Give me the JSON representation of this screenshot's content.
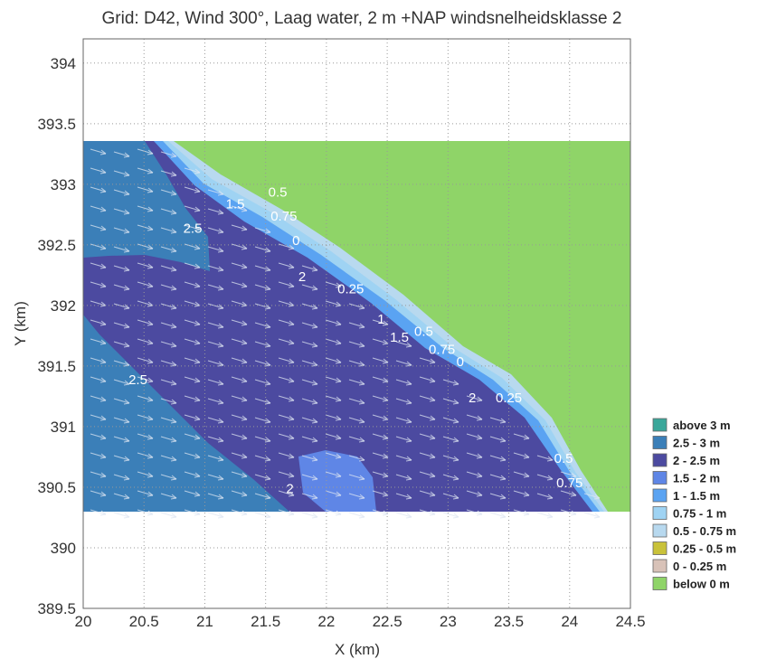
{
  "chart_data": {
    "type": "heatmap",
    "title": "Grid: D42, Wind 300°, Laag water, 2 m +NAP windsnelheidsklasse 2",
    "xlabel": "X (km)",
    "ylabel": "Y (km)",
    "xlim": [
      20,
      24.5
    ],
    "ylim": [
      389.5,
      394.2
    ],
    "xticks": [
      "20",
      "20.5",
      "21",
      "21.5",
      "22",
      "22.5",
      "23",
      "23.5",
      "24",
      "24.5"
    ],
    "yticks": [
      "389.5",
      "390",
      "390.5",
      "391",
      "391.5",
      "392",
      "392.5",
      "393",
      "393.5",
      "394"
    ],
    "grid": true,
    "legend_position": "right",
    "legend": [
      {
        "label": "above 3 m",
        "color": "#3aa79a"
      },
      {
        "label": "2.5 - 3 m",
        "color": "#3b7fb8"
      },
      {
        "label": "2 - 2.5 m",
        "color": "#4c4aa0"
      },
      {
        "label": "1.5 - 2 m",
        "color": "#5f86e6"
      },
      {
        "label": "1 - 1.5 m",
        "color": "#5aa3f2"
      },
      {
        "label": "0.75 - 1 m",
        "color": "#9fd3f3"
      },
      {
        "label": "0.5 - 0.75 m",
        "color": "#b8d9ef"
      },
      {
        "label": "0.25 - 0.5 m",
        "color": "#c9c23a"
      },
      {
        "label": "0 - 0.25 m",
        "color": "#d8c2b8"
      },
      {
        "label": "below 0 m",
        "color": "#8fd468"
      }
    ],
    "contour_labels": [
      {
        "text": "2.5",
        "x": 20.9,
        "y": 392.6
      },
      {
        "text": "2.5",
        "x": 20.45,
        "y": 391.35
      },
      {
        "text": "1.5",
        "x": 21.25,
        "y": 392.8
      },
      {
        "text": "0.5",
        "x": 21.6,
        "y": 392.9
      },
      {
        "text": "0.75",
        "x": 21.65,
        "y": 392.7
      },
      {
        "text": "0",
        "x": 21.75,
        "y": 392.5
      },
      {
        "text": "2",
        "x": 21.8,
        "y": 392.2
      },
      {
        "text": "0.25",
        "x": 22.2,
        "y": 392.1
      },
      {
        "text": "1",
        "x": 22.45,
        "y": 391.85
      },
      {
        "text": "1.5",
        "x": 22.6,
        "y": 391.7
      },
      {
        "text": "0.5",
        "x": 22.8,
        "y": 391.75
      },
      {
        "text": "0.75",
        "x": 22.95,
        "y": 391.6
      },
      {
        "text": "0",
        "x": 23.1,
        "y": 391.5
      },
      {
        "text": "2",
        "x": 23.2,
        "y": 391.2
      },
      {
        "text": "0.25",
        "x": 23.5,
        "y": 391.2
      },
      {
        "text": "0.5",
        "x": 23.95,
        "y": 390.7
      },
      {
        "text": "0.75",
        "x": 24.0,
        "y": 390.5
      },
      {
        "text": "2",
        "x": 21.7,
        "y": 390.45
      }
    ]
  }
}
